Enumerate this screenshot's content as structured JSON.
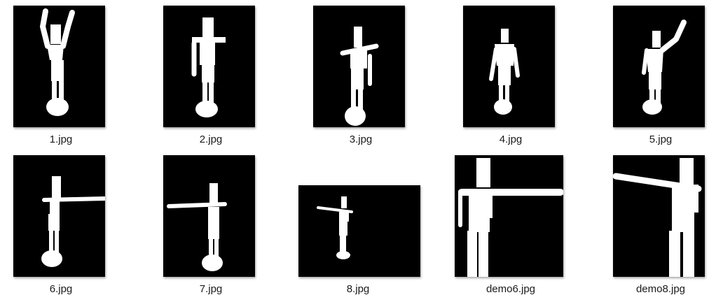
{
  "window": {
    "background": "#ffffff",
    "view": "Large icons"
  },
  "files": [
    {
      "name": "1.jpg",
      "thumbnail": "figure-arms-raised-icon"
    },
    {
      "name": "2.jpg",
      "thumbnail": "figure-arms-down-icon"
    },
    {
      "name": "3.jpg",
      "thumbnail": "figure-one-arm-horizontal-icon"
    },
    {
      "name": "4.jpg",
      "thumbnail": "figure-arms-down-icon"
    },
    {
      "name": "5.jpg",
      "thumbnail": "figure-arm-raised-diagonal-icon"
    },
    {
      "name": "6.jpg",
      "thumbnail": "figure-arm-extended-right-icon"
    },
    {
      "name": "7.jpg",
      "thumbnail": "figure-arm-extended-left-icon"
    },
    {
      "name": "8.jpg",
      "thumbnail": "figure-small-landscape-icon"
    },
    {
      "name": "demo6.jpg",
      "thumbnail": "figure-cropped-arm-right-icon"
    },
    {
      "name": "demo8.jpg",
      "thumbnail": "figure-cropped-arm-left-icon"
    }
  ],
  "colors": {
    "thumbnail_bg": "#000000",
    "figure": "#ffffff",
    "label_text": "#1a1a1a"
  }
}
